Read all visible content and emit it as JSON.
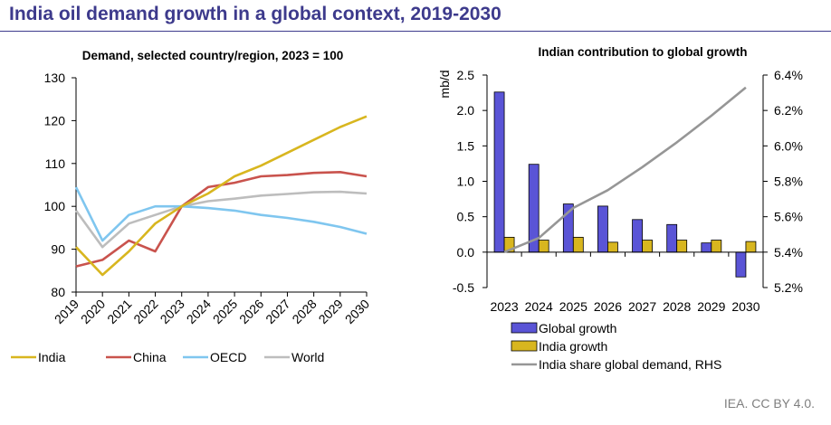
{
  "page": {
    "title": "India oil demand growth in a global context, 2019-2030",
    "footer": "IEA. CC BY 4.0."
  },
  "colors": {
    "title": "#3d3a8c",
    "India": "#d8b61f",
    "China": "#c9534d",
    "OECD": "#7fc6ef",
    "World": "#bdbdbd",
    "global_growth_bar": "#5a54d6",
    "india_growth_bar": "#d8b61f",
    "share_line": "#969696"
  },
  "chart_data": [
    {
      "type": "line",
      "title": "Demand, selected country/region, 2023 = 100",
      "xlabel": "",
      "ylabel": "",
      "ylim": [
        80,
        130
      ],
      "yticks": [
        80,
        90,
        100,
        110,
        120,
        130
      ],
      "x": [
        "2019",
        "2020",
        "2021",
        "2022",
        "2023",
        "2024",
        "2025",
        "2026",
        "2027",
        "2028",
        "2029",
        "2030"
      ],
      "grid": false,
      "legend_position": "bottom",
      "series": [
        {
          "name": "India",
          "values": [
            90.5,
            84,
            89.5,
            96,
            100,
            103,
            107,
            109.5,
            112.5,
            115.5,
            118.5,
            121
          ]
        },
        {
          "name": "China",
          "values": [
            86,
            87.5,
            92,
            89.5,
            100,
            104.5,
            105.5,
            107,
            107.3,
            107.8,
            108,
            107
          ]
        },
        {
          "name": "OECD",
          "values": [
            104.5,
            92,
            98,
            100,
            100,
            99.6,
            99,
            98,
            97.3,
            96.4,
            95.2,
            93.6
          ]
        },
        {
          "name": "World",
          "values": [
            99,
            90.5,
            96,
            98,
            100,
            101.2,
            101.8,
            102.5,
            102.9,
            103.3,
            103.4,
            103
          ]
        }
      ]
    },
    {
      "type": "bar",
      "title": "Indian contribution to global growth",
      "ylabel": "mb/d",
      "ylim": [
        -0.5,
        2.5
      ],
      "yticks": [
        -0.5,
        0.0,
        0.5,
        1.0,
        1.5,
        2.0,
        2.5
      ],
      "y2lim": [
        5.2,
        6.4
      ],
      "y2ticks": [
        "5.2%",
        "5.4%",
        "5.6%",
        "5.8%",
        "6.0%",
        "6.2%",
        "6.4%"
      ],
      "categories": [
        "2023",
        "2024",
        "2025",
        "2026",
        "2027",
        "2028",
        "2029",
        "2030"
      ],
      "grid": false,
      "legend_position": "bottom",
      "series": [
        {
          "name": "Global growth",
          "type": "bar",
          "values": [
            2.26,
            1.24,
            0.68,
            0.65,
            0.46,
            0.39,
            0.13,
            -0.35
          ]
        },
        {
          "name": "India growth",
          "type": "bar",
          "values": [
            0.21,
            0.17,
            0.21,
            0.14,
            0.17,
            0.17,
            0.17,
            0.15
          ]
        },
        {
          "name": "India share global demand, RHS",
          "type": "line",
          "axis": "right",
          "values": [
            5.4,
            5.48,
            5.65,
            5.75,
            5.88,
            6.02,
            6.17,
            6.33
          ]
        }
      ]
    }
  ]
}
